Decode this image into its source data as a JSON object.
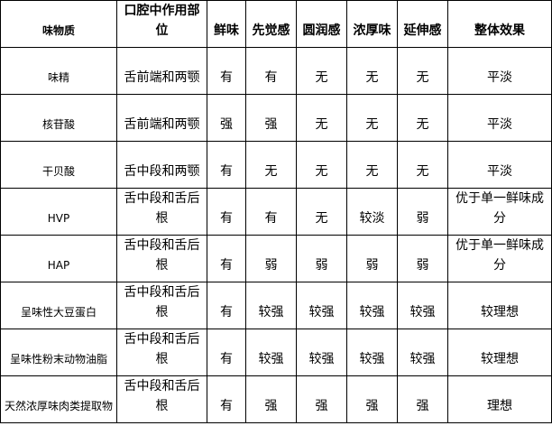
{
  "table": {
    "headers": [
      "味物质",
      "口腔中作用部位",
      "鲜味",
      "先觉感",
      "圆润感",
      "浓厚味",
      "延伸感",
      "整体效果"
    ],
    "rows": [
      [
        "味精",
        "舌前端和两颚",
        "有",
        "有",
        "无",
        "无",
        "无",
        "平淡"
      ],
      [
        "核苷酸",
        "舌前端和两颚",
        "强",
        "强",
        "无",
        "无",
        "无",
        "平淡"
      ],
      [
        "干贝酸",
        "舌中段和两颚",
        "有",
        "无",
        "无",
        "无",
        "无",
        "平淡"
      ],
      [
        "HVP",
        "舌中段和舌后根",
        "有",
        "有",
        "无",
        "较淡",
        "弱",
        "优于单一鲜味成分"
      ],
      [
        "HAP",
        "舌中段和舌后根",
        "有",
        "弱",
        "弱",
        "弱",
        "弱",
        "优于单一鲜味成分"
      ],
      [
        "呈味性大豆蛋白",
        "舌中段和舌后根",
        "有",
        "较强",
        "较强",
        "较强",
        "较强",
        "较理想"
      ],
      [
        "呈味性粉末动物油脂",
        "舌中段和舌后根",
        "有",
        "较强",
        "较强",
        "较强",
        "较强",
        "较理想"
      ],
      [
        "天然浓厚味肉类提取物",
        "舌中段和舌后根",
        "有",
        "强",
        "强",
        "强",
        "强",
        "理想"
      ]
    ]
  }
}
